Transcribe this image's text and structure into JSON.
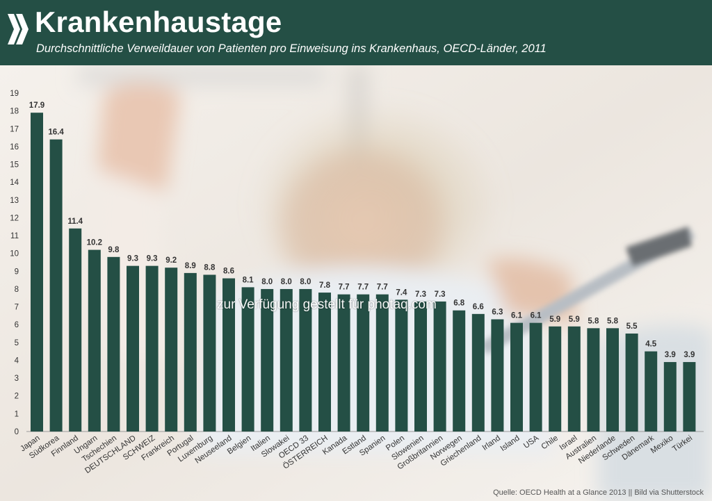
{
  "header": {
    "title": "Krankenhaustage",
    "subtitle": "Durchschnittliche Verweildauer von Patienten pro Einweisung ins Krankenhaus, OECD-Länder, 2011"
  },
  "watermark": "zur Verfügung gestellt für photaq.com",
  "source": "Quelle: OECD Health at a Glance 2013 || Bild via Shutterstock",
  "colors": {
    "header_bg": "#244f45",
    "bar": "#244f45",
    "text": "#333333"
  },
  "logo_icon": "double-chevron-icon",
  "chart_data": {
    "type": "bar",
    "categories": [
      "Japan",
      "Südkorea",
      "Finnland",
      "Ungarn",
      "Tschechien",
      "DEUTSCHLAND",
      "SCHWEIZ",
      "Frankreich",
      "Portugal",
      "Luxemburg",
      "Neuseeland",
      "Belgien",
      "Italien",
      "Slowakei",
      "OECD 33",
      "ÖSTERREICH",
      "Kanada",
      "Estland",
      "Spanien",
      "Polen",
      "Slowenien",
      "Großbritannien",
      "Norwegen",
      "Griechenland",
      "Irland",
      "Island",
      "USA",
      "Chile",
      "Israel",
      "Australien",
      "Niederlande",
      "Schweden",
      "Dänemark",
      "Mexiko",
      "Türkei"
    ],
    "values": [
      17.9,
      16.4,
      11.4,
      10.2,
      9.8,
      9.3,
      9.3,
      9.2,
      8.9,
      8.8,
      8.6,
      8.1,
      8.0,
      8.0,
      8.0,
      7.8,
      7.7,
      7.7,
      7.7,
      7.4,
      7.3,
      7.3,
      6.8,
      6.6,
      6.3,
      6.1,
      6.1,
      5.9,
      5.9,
      5.8,
      5.8,
      5.5,
      4.5,
      3.9,
      3.9
    ],
    "value_labels": [
      "17.9",
      "16.4",
      "11.4",
      "10.2",
      "9.8",
      "9.3",
      "9.3",
      "9.2",
      "8.9",
      "8.8",
      "8.6",
      "8.1",
      "8.0",
      "8.0",
      "8.0",
      "7.8",
      "7.7",
      "7.7",
      "7.7",
      "7.4",
      "7.3",
      "7.3",
      "6.8",
      "6.6",
      "6.3",
      "6.1",
      "6.1",
      "5.9",
      "5.9",
      "5.8",
      "5.8",
      "5.5",
      "4.5",
      "3.9",
      "3.9"
    ],
    "ylim": [
      0,
      19
    ],
    "yticks": [
      "0",
      "1",
      "2",
      "3",
      "4",
      "5",
      "6",
      "7",
      "8",
      "9",
      "10",
      "11",
      "12",
      "13",
      "14",
      "15",
      "16",
      "17",
      "18",
      "19"
    ],
    "grid": false,
    "legend": "none"
  }
}
